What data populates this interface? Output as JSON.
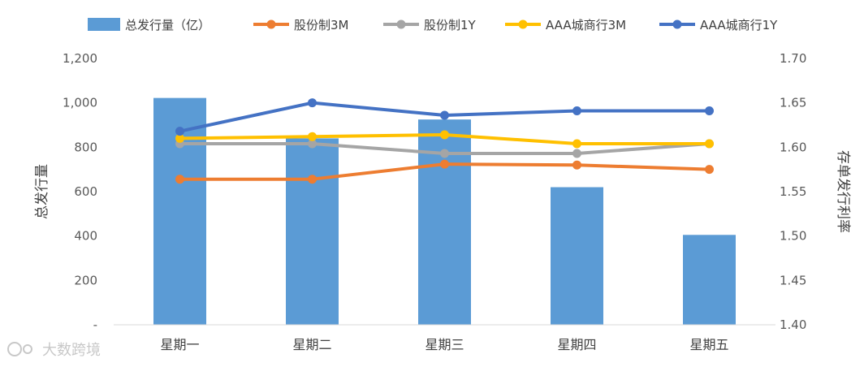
{
  "chart_data": {
    "type": "bar+line",
    "categories": [
      "星期一",
      "星期二",
      "星期三",
      "星期四",
      "星期五"
    ],
    "bar_series": {
      "name": "总发行量（亿）",
      "axis": "left",
      "color": "#5B9BD5",
      "values": [
        1022,
        840,
        925,
        620,
        405
      ]
    },
    "line_series": [
      {
        "name": "股份制3M",
        "axis": "right",
        "color": "#ED7D31",
        "values": [
          1.564,
          1.564,
          1.581,
          1.58,
          1.575
        ]
      },
      {
        "name": "股份制1Y",
        "axis": "right",
        "color": "#A5A5A5",
        "values": [
          1.604,
          1.604,
          1.593,
          1.593,
          1.604
        ]
      },
      {
        "name": "AAA城商行3M",
        "axis": "right",
        "color": "#FFC000",
        "values": [
          1.61,
          1.612,
          1.614,
          1.604,
          1.604
        ]
      },
      {
        "name": "AAA城商行1Y",
        "axis": "right",
        "color": "#4472C4",
        "values": [
          1.618,
          1.65,
          1.636,
          1.641,
          1.641
        ]
      }
    ],
    "y_left": {
      "label": "总发行量",
      "min": 0,
      "max": 1200,
      "ticks": [
        0,
        200,
        400,
        600,
        800,
        1000,
        1200
      ],
      "tick_labels": [
        "-",
        "200",
        "400",
        "600",
        "800",
        "1,000",
        "1,200"
      ]
    },
    "y_right": {
      "label": "存单发行利率",
      "min": 1.4,
      "max": 1.7,
      "ticks": [
        1.4,
        1.45,
        1.5,
        1.55,
        1.6,
        1.65,
        1.7
      ],
      "tick_labels": [
        "1.40",
        "1.45",
        "1.50",
        "1.55",
        "1.60",
        "1.65",
        "1.70"
      ]
    },
    "legend_position": "top",
    "grid": false
  },
  "watermark": "大数跨境"
}
